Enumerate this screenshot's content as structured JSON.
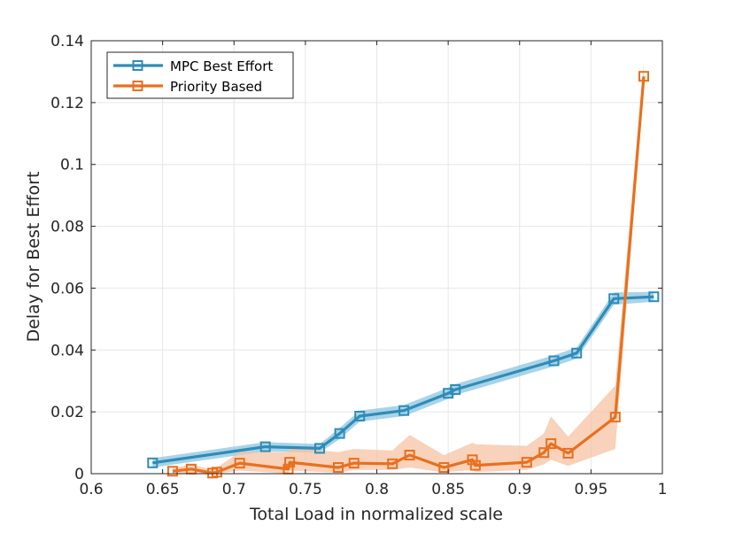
{
  "colors": {
    "mpc": "#2e8cb8",
    "mpc_band": "#8cc6df",
    "priority": "#e8701f",
    "priority_band": "#f6c3a3",
    "grid": "#e6e6e6",
    "axis": "#262626"
  },
  "chart_data": {
    "type": "line",
    "title": "",
    "xlabel": "Total Load in normalized scale",
    "ylabel": "Delay for Best Effort",
    "xlim": [
      0.6,
      1.0
    ],
    "ylim": [
      0,
      0.14
    ],
    "xticks": [
      "0.6",
      "0.65",
      "0.7",
      "0.75",
      "0.8",
      "0.85",
      "0.9",
      "0.95",
      "1"
    ],
    "xtick_values": [
      0.6,
      0.65,
      0.7,
      0.75,
      0.8,
      0.85,
      0.9,
      0.95,
      1.0
    ],
    "yticks": [
      "0",
      "0.02",
      "0.04",
      "0.06",
      "0.08",
      "0.1",
      "0.12",
      "0.14"
    ],
    "ytick_values": [
      0,
      0.02,
      0.04,
      0.06,
      0.08,
      0.1,
      0.12,
      0.14
    ],
    "grid": true,
    "legend_position": "top-left",
    "series": [
      {
        "name": "MPC Best Effort",
        "marker": "square",
        "x": [
          0.643,
          0.722,
          0.76,
          0.774,
          0.788,
          0.819,
          0.85,
          0.855,
          0.924,
          0.94,
          0.966,
          0.994
        ],
        "y": [
          0.0035,
          0.0087,
          0.0082,
          0.013,
          0.0186,
          0.0204,
          0.026,
          0.0272,
          0.0365,
          0.039,
          0.0566,
          0.0572
        ],
        "band_low": [
          0.002,
          0.0072,
          0.0068,
          0.0112,
          0.0168,
          0.0186,
          0.0242,
          0.0254,
          0.0347,
          0.0372,
          0.0546,
          0.0556
        ],
        "band_high": [
          0.005,
          0.0102,
          0.0096,
          0.0148,
          0.0204,
          0.0222,
          0.0278,
          0.029,
          0.0383,
          0.0408,
          0.0586,
          0.0588
        ]
      },
      {
        "name": "Priority Based",
        "marker": "square",
        "x": [
          0.657,
          0.67,
          0.685,
          0.688,
          0.704,
          0.738,
          0.739,
          0.773,
          0.784,
          0.811,
          0.823,
          0.847,
          0.867,
          0.869,
          0.905,
          0.917,
          0.922,
          0.934,
          0.967,
          0.987
        ],
        "y": [
          0.0008,
          0.0015,
          0.0002,
          0.0005,
          0.0034,
          0.0015,
          0.0037,
          0.002,
          0.0034,
          0.0032,
          0.006,
          0.002,
          0.0045,
          0.0027,
          0.0037,
          0.0068,
          0.0097,
          0.0066,
          0.0183,
          0.1285
        ],
        "band_low": [
          0.0,
          0.0003,
          0.0,
          0.0,
          0.001,
          0.0,
          0.001,
          0.0003,
          0.0012,
          0.0012,
          0.002,
          0.0004,
          0.0012,
          0.0005,
          0.0012,
          0.003,
          0.0045,
          0.0025,
          0.008,
          0.1245
        ],
        "band_high": [
          0.0018,
          0.003,
          0.0012,
          0.002,
          0.007,
          0.007,
          0.0085,
          0.007,
          0.008,
          0.0075,
          0.0125,
          0.006,
          0.01,
          0.0095,
          0.009,
          0.013,
          0.0185,
          0.012,
          0.0285,
          0.1325
        ]
      }
    ]
  }
}
